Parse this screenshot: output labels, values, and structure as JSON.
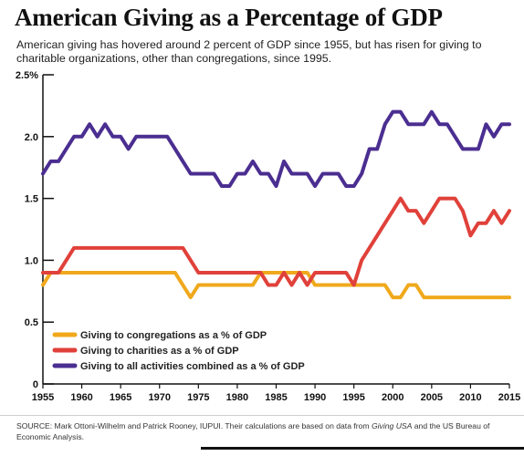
{
  "header": {
    "title": "American Giving as a Percentage of GDP",
    "subtitle": "American giving has hovered around 2 percent of GDP since 1955, but has risen for giving to charitable organizations, other than congregations, since 1995."
  },
  "source": {
    "lead": "SOURCE: Mark Ottoni-Wilhelm and Patrick Rooney, IUPUI. Their calculations are based on data from ",
    "giving_usa": "Giving USA",
    "tail": " and the US Bureau of Economic Analysis."
  },
  "chart_data": {
    "type": "line",
    "xlim": [
      1955,
      2015
    ],
    "ylim": [
      0,
      2.5
    ],
    "x_ticks": [
      1955,
      1960,
      1965,
      1970,
      1975,
      1980,
      1985,
      1990,
      1995,
      2000,
      2005,
      2010,
      2015
    ],
    "y_ticks": [
      0,
      0.5,
      1.0,
      1.5,
      2.0,
      2.5
    ],
    "y_tick_labels": [
      "0",
      "0.5",
      "1.0",
      "1.5",
      "2.0",
      "2.5%"
    ],
    "legend_position": "lower-left",
    "grid": false,
    "x": [
      1955,
      1956,
      1957,
      1958,
      1959,
      1960,
      1961,
      1962,
      1963,
      1964,
      1965,
      1966,
      1967,
      1968,
      1969,
      1970,
      1971,
      1972,
      1973,
      1974,
      1975,
      1976,
      1977,
      1978,
      1979,
      1980,
      1981,
      1982,
      1983,
      1984,
      1985,
      1986,
      1987,
      1988,
      1989,
      1990,
      1991,
      1992,
      1993,
      1994,
      1995,
      1996,
      1997,
      1998,
      1999,
      2000,
      2001,
      2002,
      2003,
      2004,
      2005,
      2006,
      2007,
      2008,
      2009,
      2010,
      2011,
      2012,
      2013,
      2014,
      2015
    ],
    "series": [
      {
        "name": "Giving to congregations as a % of GDP",
        "color": "#f0a91c",
        "values": [
          0.8,
          0.9,
          0.9,
          0.9,
          0.9,
          0.9,
          0.9,
          0.9,
          0.9,
          0.9,
          0.9,
          0.9,
          0.9,
          0.9,
          0.9,
          0.9,
          0.9,
          0.9,
          0.8,
          0.7,
          0.8,
          0.8,
          0.8,
          0.8,
          0.8,
          0.8,
          0.8,
          0.8,
          0.9,
          0.9,
          0.9,
          0.9,
          0.9,
          0.9,
          0.9,
          0.8,
          0.8,
          0.8,
          0.8,
          0.8,
          0.8,
          0.8,
          0.8,
          0.8,
          0.8,
          0.7,
          0.7,
          0.8,
          0.8,
          0.7,
          0.7,
          0.7,
          0.7,
          0.7,
          0.7,
          0.7,
          0.7,
          0.7,
          0.7,
          0.7,
          0.7
        ]
      },
      {
        "name": "Giving to charities as a % of GDP",
        "color": "#e0413a",
        "values": [
          0.9,
          0.9,
          0.9,
          1.0,
          1.1,
          1.1,
          1.1,
          1.1,
          1.1,
          1.1,
          1.1,
          1.1,
          1.1,
          1.1,
          1.1,
          1.1,
          1.1,
          1.1,
          1.1,
          1.0,
          0.9,
          0.9,
          0.9,
          0.9,
          0.9,
          0.9,
          0.9,
          0.9,
          0.9,
          0.8,
          0.8,
          0.9,
          0.8,
          0.9,
          0.8,
          0.9,
          0.9,
          0.9,
          0.9,
          0.9,
          0.8,
          1.0,
          1.1,
          1.2,
          1.3,
          1.4,
          1.5,
          1.4,
          1.4,
          1.3,
          1.4,
          1.5,
          1.5,
          1.5,
          1.4,
          1.2,
          1.3,
          1.3,
          1.4,
          1.3,
          1.4
        ]
      },
      {
        "name": "Giving to all activities combined as a % of GDP",
        "color": "#4b2e91",
        "values": [
          1.7,
          1.8,
          1.8,
          1.9,
          2.0,
          2.0,
          2.1,
          2.0,
          2.1,
          2.0,
          2.0,
          1.9,
          2.0,
          2.0,
          2.0,
          2.0,
          2.0,
          1.9,
          1.8,
          1.7,
          1.7,
          1.7,
          1.7,
          1.6,
          1.6,
          1.7,
          1.7,
          1.8,
          1.7,
          1.7,
          1.6,
          1.8,
          1.7,
          1.7,
          1.7,
          1.6,
          1.7,
          1.7,
          1.7,
          1.6,
          1.6,
          1.7,
          1.9,
          1.9,
          2.1,
          2.2,
          2.2,
          2.1,
          2.1,
          2.1,
          2.2,
          2.1,
          2.1,
          2.0,
          1.9,
          1.9,
          1.9,
          2.1,
          2.0,
          2.1,
          2.1
        ]
      }
    ]
  }
}
